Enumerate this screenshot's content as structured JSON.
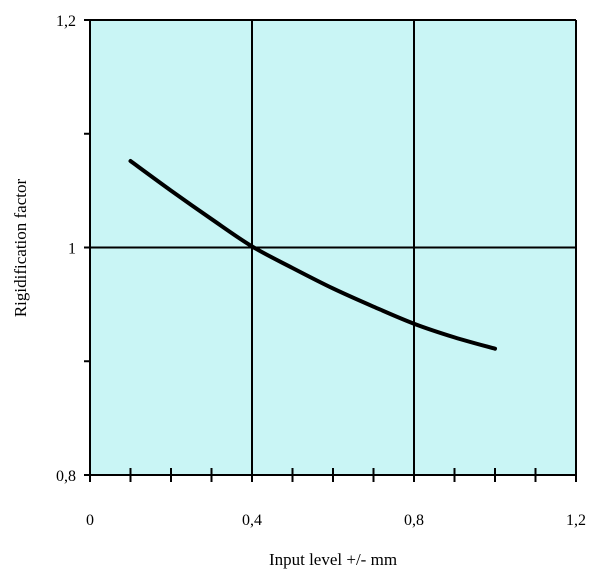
{
  "chart_data": {
    "type": "line",
    "title": "",
    "xlabel": "Input level +/- mm",
    "ylabel": "Rigidification factor",
    "xlim": [
      0,
      1.2
    ],
    "ylim": [
      0.8,
      1.2
    ],
    "x_ticks": [
      {
        "value": 0,
        "label": "0"
      },
      {
        "value": 0.4,
        "label": "0,4"
      },
      {
        "value": 0.8,
        "label": "0,8"
      },
      {
        "value": 1.2,
        "label": "1,2"
      }
    ],
    "y_ticks": [
      {
        "value": 0.8,
        "label": "0,8"
      },
      {
        "value": 1.0,
        "label": "1"
      },
      {
        "value": 1.2,
        "label": "1,2"
      }
    ],
    "x_minor_step": 0.1,
    "y_minor_step": 0.1,
    "grid": true,
    "grid_lines_x": [
      0.4,
      0.8
    ],
    "grid_lines_y": [
      1.0
    ],
    "legend": "none",
    "colors": {
      "plot_background": "#c9f5f5",
      "line": "#000000",
      "grid": "#000000"
    },
    "series": [
      {
        "x": [
          0.1,
          0.2,
          0.3,
          0.4,
          0.5,
          0.6,
          0.7,
          0.8,
          0.9,
          1.0
        ],
        "values": [
          1.076,
          1.05,
          1.025,
          1.001,
          0.982,
          0.964,
          0.948,
          0.933,
          0.921,
          0.911
        ]
      }
    ]
  }
}
